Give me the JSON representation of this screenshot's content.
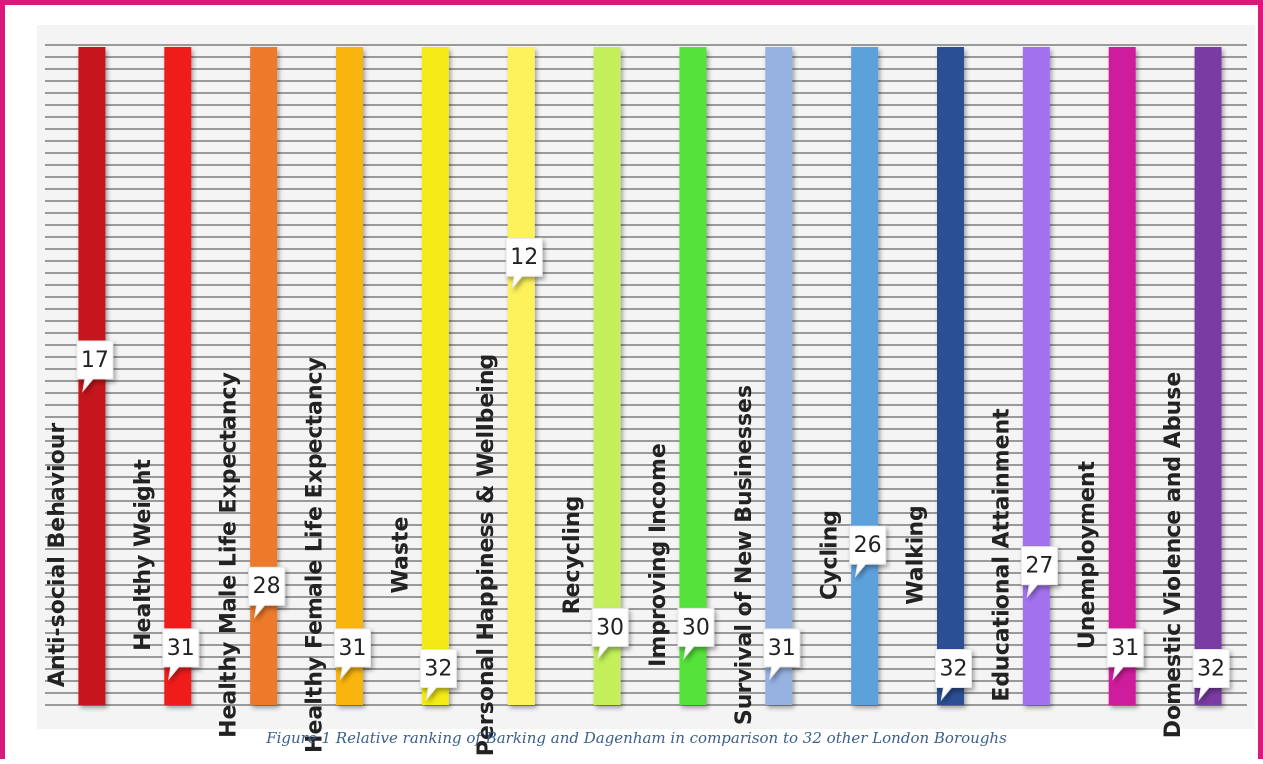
{
  "caption": "Figure 1 Relative ranking of Barking and Dagenham in comparison to 32 other London Boroughs",
  "chart_data": {
    "type": "bar",
    "categories": [
      "Anti-social Behaviour",
      "Healthy Weight",
      "Healthy Male Life Expectancy",
      "Healthy Female Life Expectancy",
      "Waste",
      "Personal Happiness & Wellbeing",
      "Recycling",
      "Improving Income",
      "Survival of New Businesses",
      "Cycling",
      "Walking",
      "Educational Attainment",
      "Unemployment",
      "Domestic Violence and Abuse"
    ],
    "values": [
      17,
      31,
      28,
      31,
      32,
      12,
      30,
      30,
      31,
      26,
      32,
      27,
      31,
      32
    ],
    "ylim": [
      1,
      33
    ],
    "colors": [
      "#c4181c",
      "#f01a1a",
      "#ec7a2c",
      "#f9b410",
      "#f3ea12",
      "#fdf25a",
      "#c2ef5a",
      "#54e23a",
      "#96b2e0",
      "#5ca0dc",
      "#2a4f94",
      "#a272ee",
      "#cf1a9c",
      "#7a3aa2"
    ],
    "grid": true
  }
}
